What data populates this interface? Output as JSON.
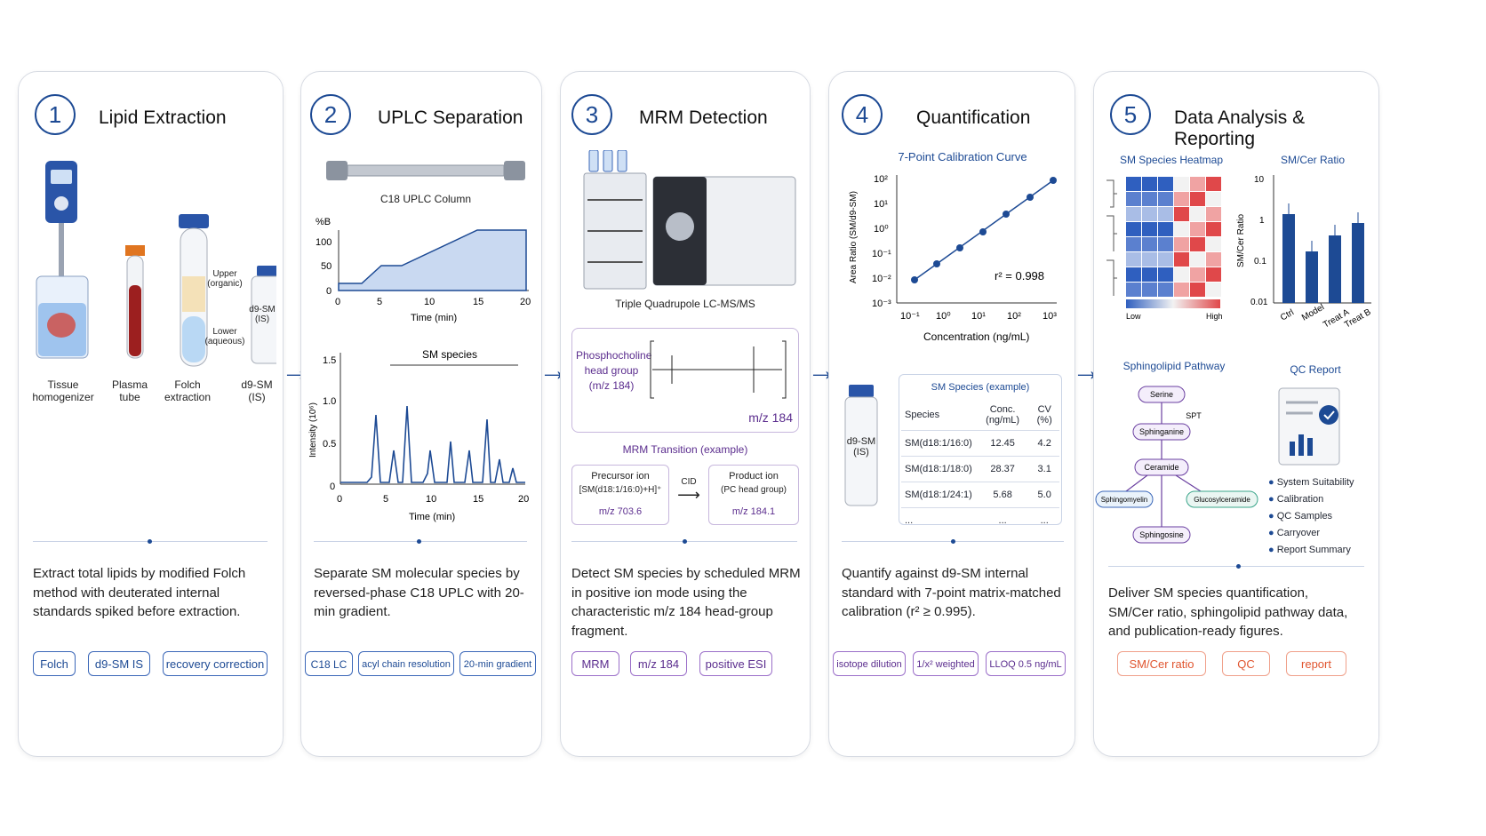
{
  "colors": {
    "accent": "#1d4a94",
    "purple": "#5b2d8e",
    "orange": "#e0552f",
    "border": "#d7dbe3"
  },
  "step1": {
    "num": "1",
    "title": "Lipid Extraction",
    "labels": {
      "homogenizer": "Tissue homogenizer",
      "plasma": "Plasma tube",
      "folch": "Folch extraction",
      "is": "d9-SM (IS)"
    },
    "upper": "Upper (organic)",
    "lower": "Lower (aqueous)",
    "vial_label": "d9-SM (IS)",
    "desc": "Extract total lipids by modified Folch method with deuterated internal standards spiked before extraction.",
    "tags": [
      "Folch",
      "d9-SM IS",
      "recovery correction"
    ]
  },
  "step2": {
    "num": "2",
    "title": "UPLC Separation",
    "column_label": "C18 UPLC Column",
    "gradient": {
      "ylabel": "%B",
      "yticks": [
        "100",
        "50",
        "0"
      ],
      "xticks": [
        "0",
        "5",
        "10",
        "15",
        "20"
      ],
      "xlabel": "Time (min)"
    },
    "chrom": {
      "title": "SM species",
      "ylabel": "Intensity (10⁶)",
      "yticks": [
        "1.5",
        "1.0",
        "0.5",
        "0"
      ],
      "xticks": [
        "0",
        "5",
        "10",
        "15",
        "20"
      ],
      "xlabel": "Time (min)"
    },
    "desc": "Separate SM molecular species by reversed-phase C18 UPLC with 20-min gradient.",
    "tags": [
      "C18 LC",
      "acyl chain resolution",
      "20-min gradient"
    ]
  },
  "step3": {
    "num": "3",
    "title": "MRM Detection",
    "instrument": "Triple Quadrupole LC-MS/MS",
    "head_group": "Phosphocholine head group (m/z 184)",
    "mz_label": "m/z 184",
    "transition_title": "MRM Transition (example)",
    "precursor": {
      "name": "Precursor ion",
      "formula": "[SM(d18:1/16:0)+H]⁺",
      "mz": "m/z 703.6"
    },
    "cid": "CID",
    "product": {
      "name": "Product ion",
      "formula": "(PC head group)",
      "mz": "m/z 184.1"
    },
    "desc": "Detect SM species by scheduled MRM in positive ion mode using the characteristic m/z 184 head-group fragment.",
    "tags": [
      "MRM",
      "m/z 184",
      "positive ESI"
    ]
  },
  "step4": {
    "num": "4",
    "title": "Quantification",
    "curve_title": "7-Point Calibration Curve",
    "ylabel": "Area Ratio (SM/d9-SM)",
    "xlabel": "Concentration (ng/mL)",
    "r2": "r² = 0.998",
    "yticks": [
      "10²",
      "10¹",
      "10⁰",
      "10⁻¹",
      "10⁻²",
      "10⁻³"
    ],
    "xticks": [
      "10⁻¹",
      "10⁰",
      "10¹",
      "10²",
      "10³"
    ],
    "vial_label": "d9-SM (IS)",
    "table": {
      "title": "SM Species (example)",
      "headers": [
        "Species",
        "Conc. (ng/mL)",
        "CV (%)"
      ],
      "rows": [
        [
          "SM(d18:1/16:0)",
          "12.45",
          "4.2"
        ],
        [
          "SM(d18:1/18:0)",
          "28.37",
          "3.1"
        ],
        [
          "SM(d18:1/24:1)",
          "5.68",
          "5.0"
        ],
        [
          "...",
          "...",
          "..."
        ]
      ]
    },
    "desc": "Quantify against d9-SM internal standard with 7-point matrix-matched calibration (r² ≥ 0.995).",
    "tags": [
      "isotope dilution",
      "1/x² weighted",
      "LLOQ 0.5 ng/mL"
    ]
  },
  "step5": {
    "num": "5",
    "title": "Data Analysis & Reporting",
    "heatmap_title": "SM Species Heatmap",
    "heat_low": "Low",
    "heat_high": "High",
    "ratio_title": "SM/Cer Ratio",
    "ratio_ylabel": "SM/Cer Ratio",
    "ratio_yticks": [
      "10",
      "1",
      "0.1",
      "0.01"
    ],
    "ratio_groups": [
      "Ctrl",
      "Model",
      "Treat A",
      "Treat B"
    ],
    "pathway_title": "Sphingolipid Pathway",
    "pathway_nodes": {
      "serine": "Serine",
      "spt": "SPT",
      "sphinganine": "Sphinganine",
      "ceramide": "Ceramide",
      "sphingomyelin": "Sphingomyelin",
      "glucosylceramide": "Glucosylceramide",
      "sphingosine": "Sphingosine"
    },
    "qc_title": "QC Report",
    "qc_items": [
      "System Suitability",
      "Calibration",
      "QC Samples",
      "Carryover",
      "Report Summary"
    ],
    "desc": "Deliver SM species quantification, SM/Cer ratio, sphingolipid pathway data, and publication-ready figures.",
    "tags": [
      "SM/Cer ratio",
      "QC",
      "report"
    ]
  }
}
